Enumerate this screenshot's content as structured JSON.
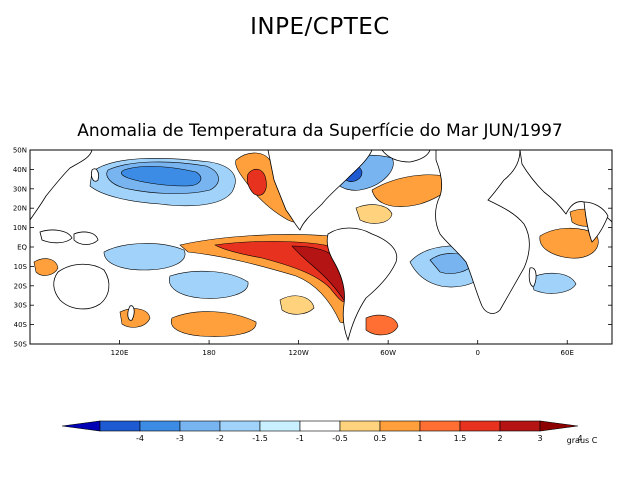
{
  "header": {
    "org_title": "INPE/CPTEC",
    "map_title": "Anomalia de Temperatura da Superfície do Mar JUN/1997"
  },
  "axes": {
    "lat_labels": [
      "50N",
      "40N",
      "30N",
      "20N",
      "10N",
      "EQ",
      "10S",
      "20S",
      "30S",
      "40S",
      "50S"
    ],
    "lon_labels": [
      "120E",
      "180",
      "120W",
      "60W",
      "0",
      "60E"
    ]
  },
  "colorbar": {
    "unit_label": "graus C",
    "tick_labels": [
      "-4",
      "-3",
      "-2",
      "-1.5",
      "-1",
      "-0.5",
      "0.5",
      "1",
      "1.5",
      "2",
      "3",
      "4"
    ],
    "colors": [
      "#0000b4",
      "#1e5ad2",
      "#3c8ce6",
      "#78b4f0",
      "#a0d2fa",
      "#c8f0ff",
      "#ffffff",
      "#ffd27d",
      "#ffa03c",
      "#ff6e32",
      "#e6321e",
      "#b41414",
      "#8c0000"
    ]
  },
  "colors": {
    "warm_strong": "#b41414",
    "warm_mid": "#e6321e",
    "warm_light": "#ffa03c",
    "cool_strong": "#1e5ad2",
    "cool_light": "#a0d2fa"
  }
}
